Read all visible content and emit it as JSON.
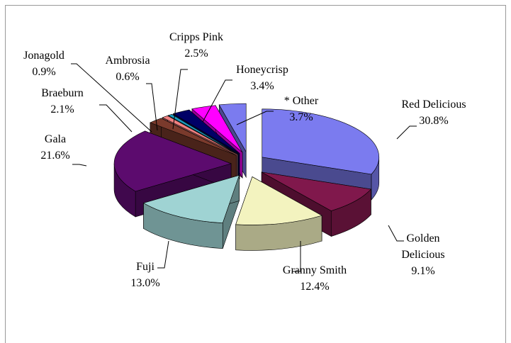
{
  "chart_data": {
    "type": "pie3d",
    "categories": [
      "Red Delicious",
      "Golden Delicious",
      "Granny Smith",
      "Fuji",
      "Gala",
      "Braeburn",
      "Jonagold",
      "Ambrosia",
      "Cripps Pink",
      "Honeycrisp",
      "* Other"
    ],
    "values": [
      30.8,
      9.1,
      12.4,
      13.0,
      21.6,
      2.1,
      0.9,
      0.6,
      2.5,
      3.4,
      3.7
    ],
    "value_labels": [
      "30.8%",
      "9.1%",
      "12.4%",
      "13.0%",
      "21.6%",
      "2.1%",
      "0.9%",
      "0.6%",
      "2.5%",
      "3.4%",
      "3.7%"
    ],
    "colors": [
      "#7b7bef",
      "#80184c",
      "#f3f3bf",
      "#9fd3d3",
      "#5c0b6e",
      "#7a3a2c",
      "#f08080",
      "#1a9cc0",
      "#000066",
      "#ff00ff",
      "#7b7bef"
    ]
  }
}
